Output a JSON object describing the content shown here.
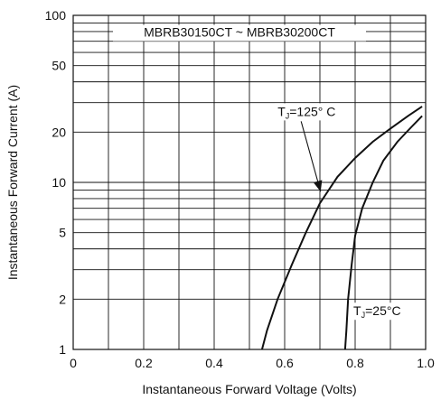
{
  "chart_data": {
    "type": "line",
    "title": "MBRB30150CT ~ MBRB30200CT",
    "xlabel": "Instantaneous Forward Voltage (Volts)",
    "ylabel": "Instantaneous Forward Current (A)",
    "x_scale": "linear",
    "y_scale": "log",
    "xlim": [
      0,
      1.0
    ],
    "ylim": [
      1,
      100
    ],
    "x_ticks": [
      0,
      0.1,
      0.2,
      0.3,
      0.4,
      0.5,
      0.6,
      0.7,
      0.8,
      0.9,
      1.0
    ],
    "x_tick_labels": [
      {
        "v": 0,
        "label": "0"
      },
      {
        "v": 0.2,
        "label": "0.2"
      },
      {
        "v": 0.4,
        "label": "0.4"
      },
      {
        "v": 0.6,
        "label": "0.6"
      },
      {
        "v": 0.8,
        "label": "0.8"
      },
      {
        "v": 1.0,
        "label": "1.0"
      }
    ],
    "y_gridlines": [
      1,
      2,
      3,
      4,
      5,
      6,
      7,
      8,
      9,
      10,
      20,
      30,
      40,
      50,
      60,
      70,
      80,
      90,
      100
    ],
    "y_tick_labels": [
      {
        "v": 1,
        "label": "1"
      },
      {
        "v": 2,
        "label": "2"
      },
      {
        "v": 5,
        "label": "5"
      },
      {
        "v": 10,
        "label": "10"
      },
      {
        "v": 20,
        "label": "20"
      },
      {
        "v": 50,
        "label": "50"
      },
      {
        "v": 100,
        "label": "100"
      }
    ],
    "grid": true,
    "series": [
      {
        "name": "TJ=125° C",
        "points": [
          [
            0.53,
            0.9
          ],
          [
            0.55,
            1.3
          ],
          [
            0.58,
            2.0
          ],
          [
            0.62,
            3.2
          ],
          [
            0.66,
            5.0
          ],
          [
            0.7,
            7.5
          ],
          [
            0.75,
            10.8
          ],
          [
            0.8,
            14.0
          ],
          [
            0.85,
            17.5
          ],
          [
            0.9,
            21.0
          ],
          [
            0.95,
            25.0
          ],
          [
            0.99,
            28.5
          ]
        ]
      },
      {
        "name": "TJ=25°C",
        "points": [
          [
            0.77,
            0.9
          ],
          [
            0.775,
            1.3
          ],
          [
            0.78,
            2.0
          ],
          [
            0.79,
            3.2
          ],
          [
            0.8,
            4.8
          ],
          [
            0.82,
            7.0
          ],
          [
            0.85,
            10.0
          ],
          [
            0.88,
            13.5
          ],
          [
            0.92,
            17.5
          ],
          [
            0.96,
            21.5
          ],
          [
            0.99,
            25.0
          ]
        ]
      }
    ],
    "annotations": [
      {
        "series": 0,
        "text_main": "T",
        "text_sub": "J",
        "text_rest": "=125° C",
        "label_at": [
          0.58,
          25
        ],
        "arrow_to": [
          0.702,
          8.8
        ]
      },
      {
        "series": 1,
        "text_main": "T",
        "text_sub": "J",
        "text_rest": "=25°C",
        "label_at": [
          0.795,
          1.6
        ]
      }
    ]
  }
}
